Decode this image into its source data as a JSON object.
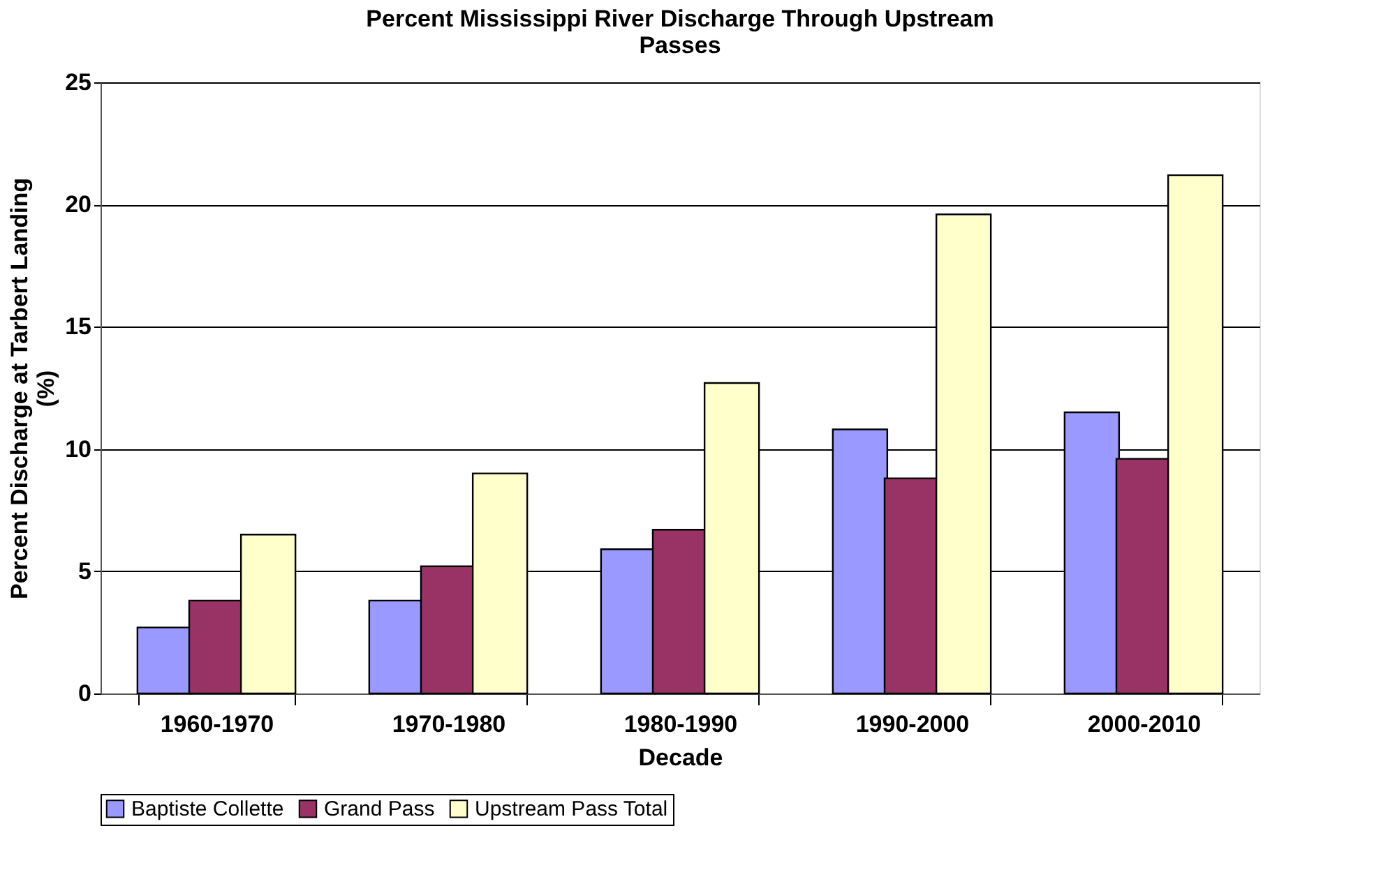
{
  "chart_data": {
    "type": "bar",
    "title": [
      "Percent Mississippi River Discharge Through Upstream",
      "Passes"
    ],
    "xlabel": "Decade",
    "ylabel": [
      "Percent Discharge at Tarbert Landing",
      "(%)"
    ],
    "categories": [
      "1960-1970",
      "1970-1980",
      "1980-1990",
      "1990-2000",
      "2000-2010"
    ],
    "series": [
      {
        "name": "Baptiste Collette",
        "color": "#9999ff",
        "values": [
          2.7,
          3.8,
          5.9,
          10.8,
          11.5
        ]
      },
      {
        "name": "Grand Pass",
        "color": "#993366",
        "values": [
          3.8,
          5.2,
          6.7,
          8.8,
          9.6
        ]
      },
      {
        "name": "Upstream Pass Total",
        "color": "#ffffcc",
        "values": [
          6.5,
          9.0,
          12.7,
          19.6,
          21.2
        ]
      }
    ],
    "ylim": [
      0,
      25
    ],
    "yticks": [
      0,
      5,
      10,
      15,
      20,
      25
    ],
    "grid": "y",
    "legend": "bottom"
  }
}
